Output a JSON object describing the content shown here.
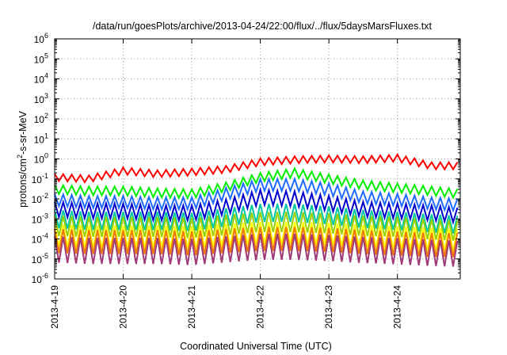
{
  "chart_data": {
    "type": "line",
    "title": "/data/run/goesPlots/archive/2013-04-24/22:00/flux/../flux/5daysMarsFluxes.txt",
    "xlabel": "Coordinated Universal Time (UTC)",
    "ylabel_parts": [
      "protons/cm",
      "2",
      "-s-sr-MeV"
    ],
    "y_scale": "log",
    "ylim": [
      1e-06,
      1000000.0
    ],
    "y_ticks": [
      {
        "exp": -6,
        "base": "10",
        "power": "-6"
      },
      {
        "exp": -5,
        "base": "10",
        "power": "-5"
      },
      {
        "exp": -4,
        "base": "10",
        "power": "-4"
      },
      {
        "exp": -3,
        "base": "10",
        "power": "-3"
      },
      {
        "exp": -2,
        "base": "10",
        "power": "-2"
      },
      {
        "exp": -1,
        "base": "10",
        "power": "-1"
      },
      {
        "exp": 0,
        "base": "10",
        "power": "0"
      },
      {
        "exp": 1,
        "base": "10",
        "power": "1"
      },
      {
        "exp": 2,
        "base": "10",
        "power": "2"
      },
      {
        "exp": 3,
        "base": "10",
        "power": "3"
      },
      {
        "exp": 4,
        "base": "10",
        "power": "4"
      },
      {
        "exp": 5,
        "base": "10",
        "power": "5"
      },
      {
        "exp": 6,
        "base": "10",
        "power": "6"
      }
    ],
    "xlim": [
      "2013-04-19T00:00",
      "2013-04-24T22:00"
    ],
    "x_ticks": [
      {
        "date": "2013-04-19",
        "label": "2013-4-19"
      },
      {
        "date": "2013-04-20",
        "label": "2013-4-20"
      },
      {
        "date": "2013-04-21",
        "label": "2013-4-21"
      },
      {
        "date": "2013-04-22",
        "label": "2013-4-22"
      },
      {
        "date": "2013-04-23",
        "label": "2013-4-23"
      },
      {
        "date": "2013-04-24",
        "label": "2013-4-24"
      }
    ],
    "grid": true,
    "series": [
      {
        "color": "#ff0000",
        "x": [
          "2013-04-19T00:00",
          "2013-04-19T12:00",
          "2013-04-20T00:00",
          "2013-04-20T12:00",
          "2013-04-21T00:00",
          "2013-04-21T12:00",
          "2013-04-22T00:00",
          "2013-04-22T12:00",
          "2013-04-23T00:00",
          "2013-04-23T12:00",
          "2013-04-24T00:00",
          "2013-04-24T12:00",
          "2013-04-24T22:00"
        ],
        "y": [
          0.12,
          0.1,
          0.25,
          0.18,
          0.22,
          0.3,
          0.7,
          0.9,
          1.0,
          0.9,
          1.1,
          0.45,
          0.45
        ],
        "ripple": 0.35
      },
      {
        "color": "#00ee00",
        "x": [
          "2013-04-19T00:00",
          "2013-04-19T12:00",
          "2013-04-20T00:00",
          "2013-04-20T12:00",
          "2013-04-21T00:00",
          "2013-04-21T12:00",
          "2013-04-22T00:00",
          "2013-04-22T12:00",
          "2013-04-23T00:00",
          "2013-04-23T12:00",
          "2013-04-24T00:00",
          "2013-04-24T12:00",
          "2013-04-24T22:00"
        ],
        "y": [
          0.03,
          0.025,
          0.025,
          0.02,
          0.018,
          0.04,
          0.12,
          0.2,
          0.1,
          0.05,
          0.035,
          0.025,
          0.018
        ],
        "ripple": 0.45
      },
      {
        "color": "#1e6cff",
        "x": [
          "2013-04-19T00:00",
          "2013-04-19T12:00",
          "2013-04-20T00:00",
          "2013-04-20T12:00",
          "2013-04-21T00:00",
          "2013-04-21T12:00",
          "2013-04-22T00:00",
          "2013-04-22T12:00",
          "2013-04-23T00:00",
          "2013-04-23T12:00",
          "2013-04-24T00:00",
          "2013-04-24T12:00",
          "2013-04-24T22:00"
        ],
        "y": [
          0.009,
          0.007,
          0.007,
          0.006,
          0.006,
          0.018,
          0.05,
          0.05,
          0.03,
          0.012,
          0.009,
          0.006,
          0.005
        ],
        "ripple": 0.6
      },
      {
        "color": "#0000cc",
        "x": [
          "2013-04-19T00:00",
          "2013-04-19T12:00",
          "2013-04-20T00:00",
          "2013-04-20T12:00",
          "2013-04-21T00:00",
          "2013-04-21T12:00",
          "2013-04-22T00:00",
          "2013-04-22T12:00",
          "2013-04-23T00:00",
          "2013-04-23T12:00",
          "2013-04-24T00:00",
          "2013-04-24T12:00",
          "2013-04-24T22:00"
        ],
        "y": [
          0.003,
          0.0025,
          0.0025,
          0.002,
          0.002,
          0.004,
          0.012,
          0.01,
          0.006,
          0.003,
          0.0025,
          0.002,
          0.0015
        ],
        "ripple": 0.75
      },
      {
        "color": "#00c8a0",
        "x": [
          "2013-04-19T00:00",
          "2013-04-19T12:00",
          "2013-04-20T00:00",
          "2013-04-20T12:00",
          "2013-04-21T00:00",
          "2013-04-21T12:00",
          "2013-04-22T00:00",
          "2013-04-22T12:00",
          "2013-04-23T00:00",
          "2013-04-23T12:00",
          "2013-04-24T00:00",
          "2013-04-24T12:00",
          "2013-04-24T22:00"
        ],
        "y": [
          0.001,
          0.0008,
          0.0008,
          0.0008,
          0.0007,
          0.0012,
          0.002,
          0.002,
          0.0015,
          0.001,
          0.0008,
          0.0006,
          0.0005
        ],
        "ripple": 0.9
      },
      {
        "color": "#9bd000",
        "x": [
          "2013-04-19T00:00",
          "2013-04-19T12:00",
          "2013-04-20T00:00",
          "2013-04-20T12:00",
          "2013-04-21T00:00",
          "2013-04-21T12:00",
          "2013-04-22T00:00",
          "2013-04-22T12:00",
          "2013-04-23T00:00",
          "2013-04-23T12:00",
          "2013-04-24T00:00",
          "2013-04-24T12:00",
          "2013-04-24T22:00"
        ],
        "y": [
          0.00045,
          0.0004,
          0.0004,
          0.0004,
          0.00035,
          0.0005,
          0.0007,
          0.0007,
          0.0006,
          0.00045,
          0.0004,
          0.0003,
          0.00025
        ],
        "ripple": 1.0
      },
      {
        "color": "#ffff00",
        "x": [
          "2013-04-19T00:00",
          "2013-04-19T12:00",
          "2013-04-20T00:00",
          "2013-04-20T12:00",
          "2013-04-21T00:00",
          "2013-04-21T12:00",
          "2013-04-22T00:00",
          "2013-04-22T12:00",
          "2013-04-23T00:00",
          "2013-04-23T12:00",
          "2013-04-24T00:00",
          "2013-04-24T12:00",
          "2013-04-24T22:00"
        ],
        "y": [
          0.00015,
          0.00013,
          0.00013,
          0.00013,
          0.00012,
          0.00016,
          0.0002,
          0.0002,
          0.00018,
          0.00014,
          0.00012,
          0.0001,
          9e-05
        ],
        "ripple": 1.1
      },
      {
        "color": "#f07a00",
        "x": [
          "2013-04-19T00:00",
          "2013-04-19T12:00",
          "2013-04-20T00:00",
          "2013-04-20T12:00",
          "2013-04-21T00:00",
          "2013-04-21T12:00",
          "2013-04-22T00:00",
          "2013-04-22T12:00",
          "2013-04-23T00:00",
          "2013-04-23T12:00",
          "2013-04-24T00:00",
          "2013-04-24T12:00",
          "2013-04-24T22:00"
        ],
        "y": [
          8e-05,
          7e-05,
          7e-05,
          7e-05,
          6e-05,
          8e-05,
          0.0001,
          0.0001,
          9e-05,
          7e-05,
          6e-05,
          5e-05,
          5e-05
        ],
        "ripple": 1.2
      },
      {
        "color": "#a03a78",
        "x": [
          "2013-04-19T00:00",
          "2013-04-19T12:00",
          "2013-04-20T00:00",
          "2013-04-20T12:00",
          "2013-04-21T00:00",
          "2013-04-21T12:00",
          "2013-04-22T00:00",
          "2013-04-22T12:00",
          "2013-04-23T00:00",
          "2013-04-23T12:00",
          "2013-04-24T00:00",
          "2013-04-24T12:00",
          "2013-04-24T22:00"
        ],
        "y": [
          3e-05,
          2.5e-05,
          2.5e-05,
          2.5e-05,
          2.2e-05,
          3e-05,
          4e-05,
          4e-05,
          3.5e-05,
          2.8e-05,
          2.4e-05,
          2e-05,
          1.8e-05
        ],
        "ripple": 1.3
      }
    ]
  }
}
